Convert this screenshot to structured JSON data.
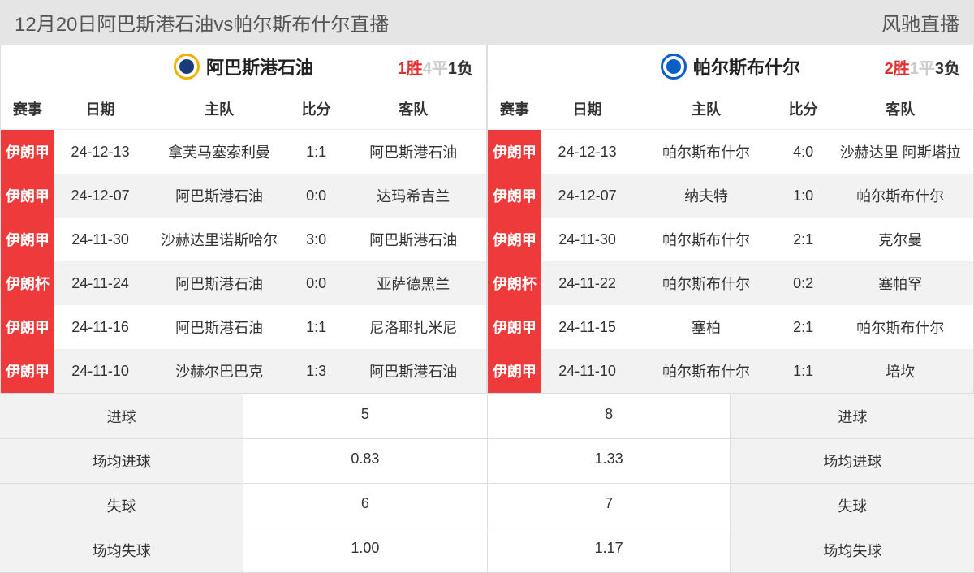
{
  "header": {
    "title": "12月20日阿巴斯港石油vs帕尔斯布什尔直播",
    "site": "风驰直播"
  },
  "colors": {
    "comp_bg": "#ee3a3a",
    "win": "#e03030",
    "draw": "#cccccc",
    "loss": "#333333"
  },
  "left": {
    "team": "阿巴斯港石油",
    "record": {
      "win": "1胜",
      "draw": "4平",
      "loss": "1负"
    },
    "columns": [
      "赛事",
      "日期",
      "主队",
      "比分",
      "客队"
    ],
    "matches": [
      {
        "comp": "伊朗甲",
        "date": "24-12-13",
        "home": "拿芙马塞索利曼",
        "score": "1:1",
        "away": "阿巴斯港石油"
      },
      {
        "comp": "伊朗甲",
        "date": "24-12-07",
        "home": "阿巴斯港石油",
        "score": "0:0",
        "away": "达玛希吉兰"
      },
      {
        "comp": "伊朗甲",
        "date": "24-11-30",
        "home": "沙赫达里诺斯哈尔",
        "score": "3:0",
        "away": "阿巴斯港石油"
      },
      {
        "comp": "伊朗杯",
        "date": "24-11-24",
        "home": "阿巴斯港石油",
        "score": "0:0",
        "away": "亚萨德黑兰"
      },
      {
        "comp": "伊朗甲",
        "date": "24-11-16",
        "home": "阿巴斯港石油",
        "score": "1:1",
        "away": "尼洛耶扎米尼"
      },
      {
        "comp": "伊朗甲",
        "date": "24-11-10",
        "home": "沙赫尔巴巴克",
        "score": "1:3",
        "away": "阿巴斯港石油"
      }
    ]
  },
  "right": {
    "team": "帕尔斯布什尔",
    "record": {
      "win": "2胜",
      "draw": "1平",
      "loss": "3负"
    },
    "columns": [
      "赛事",
      "日期",
      "主队",
      "比分",
      "客队"
    ],
    "matches": [
      {
        "comp": "伊朗甲",
        "date": "24-12-13",
        "home": "帕尔斯布什尔",
        "score": "4:0",
        "away": "沙赫达里 阿斯塔拉"
      },
      {
        "comp": "伊朗甲",
        "date": "24-12-07",
        "home": "纳夫特",
        "score": "1:0",
        "away": "帕尔斯布什尔"
      },
      {
        "comp": "伊朗甲",
        "date": "24-11-30",
        "home": "帕尔斯布什尔",
        "score": "2:1",
        "away": "克尔曼"
      },
      {
        "comp": "伊朗杯",
        "date": "24-11-22",
        "home": "帕尔斯布什尔",
        "score": "0:2",
        "away": "塞帕罕"
      },
      {
        "comp": "伊朗甲",
        "date": "24-11-15",
        "home": "塞柏",
        "score": "2:1",
        "away": "帕尔斯布什尔"
      },
      {
        "comp": "伊朗甲",
        "date": "24-11-10",
        "home": "帕尔斯布什尔",
        "score": "1:1",
        "away": "培坎"
      }
    ]
  },
  "stats": {
    "labels": {
      "goals": "进球",
      "avg_goals": "场均进球",
      "conceded": "失球",
      "avg_conceded": "场均失球"
    },
    "left": {
      "goals": "5",
      "avg_goals": "0.83",
      "conceded": "6",
      "avg_conceded": "1.00"
    },
    "right": {
      "goals": "8",
      "avg_goals": "1.33",
      "conceded": "7",
      "avg_conceded": "1.17"
    }
  }
}
